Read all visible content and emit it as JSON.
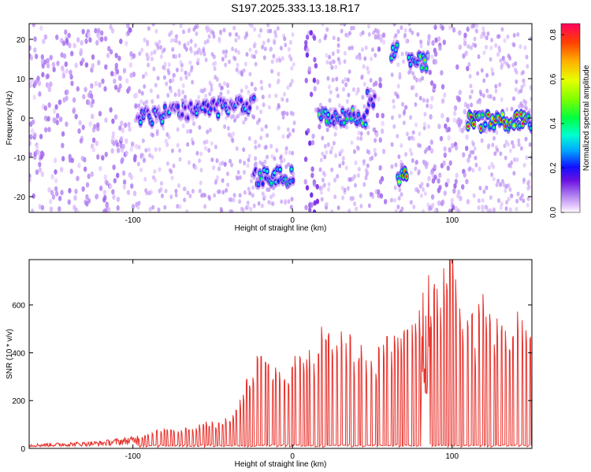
{
  "title": "S197.2025.333.13.18.R17",
  "chart_data": [
    {
      "type": "heatmap",
      "xlabel": "Height of straight line (km)",
      "ylabel": "Frequency (Hz)",
      "xlim": [
        -165,
        150
      ],
      "ylim": [
        -24,
        24
      ],
      "xticks": [
        -100,
        0,
        100
      ],
      "yticks": [
        -20,
        -10,
        0,
        10,
        20
      ],
      "colorbar": {
        "label": "Normalized spectral amplitude",
        "range": [
          0,
          0.85
        ],
        "ticks": [
          "0.0",
          "0.2",
          "0.4",
          "0.6",
          "0.8"
        ],
        "tick_values": [
          0,
          0.2,
          0.4,
          0.6,
          0.8
        ]
      },
      "segments": [
        {
          "x0": -165,
          "x1": -98,
          "freq": 0,
          "amp": 0.05,
          "noise": true
        },
        {
          "x0": -97,
          "x1": -24,
          "freq": 0,
          "amp": 0.25,
          "slope": 0.05,
          "noise": false
        },
        {
          "x0": -24,
          "x1": 1,
          "freq": -15,
          "amp": 0.3,
          "noise": false
        },
        {
          "x0": 8,
          "x1": 17,
          "freq": 17,
          "amp": 0.08,
          "noise": true
        },
        {
          "x0": 17,
          "x1": 47,
          "freq": 0,
          "amp": 0.38,
          "noise": false
        },
        {
          "x0": 47,
          "x1": 52,
          "freq": 5,
          "amp": 0.22,
          "noise": false
        },
        {
          "x0": 52,
          "x1": 58,
          "freq": 0,
          "amp": 0.05,
          "noise": true
        },
        {
          "x0": 62,
          "x1": 66,
          "freq": 17,
          "amp": 0.3,
          "noise": false
        },
        {
          "x0": 66,
          "x1": 72,
          "freq": -15,
          "amp": 0.55,
          "noise": false
        },
        {
          "x0": 73,
          "x1": 85,
          "freq": 14,
          "amp": 0.35,
          "noise": false
        },
        {
          "x0": 85,
          "x1": 110,
          "freq": 0,
          "amp": 0.05,
          "noise": true
        },
        {
          "x0": 110,
          "x1": 150,
          "freq": -1,
          "amp": 0.6,
          "noise": false
        }
      ]
    },
    {
      "type": "line",
      "xlabel": "Height of straight line (km)",
      "ylabel": "SNR (10 * v/v)",
      "xlim": [
        -165,
        150
      ],
      "ylim": [
        0,
        790
      ],
      "xticks": [
        -100,
        0,
        100
      ],
      "yticks": [
        0,
        200,
        400,
        600
      ],
      "series": [
        {
          "name": "SNR",
          "color": "#e8302a",
          "x": [
            -165,
            -140,
            -120,
            -100,
            -90,
            -80,
            -70,
            -60,
            -50,
            -40,
            -30,
            -20,
            -10,
            0,
            10,
            20,
            30,
            40,
            50,
            60,
            70,
            80,
            90,
            100,
            110,
            120,
            130,
            140,
            150
          ],
          "y": [
            15,
            20,
            25,
            40,
            60,
            90,
            80,
            85,
            100,
            120,
            250,
            350,
            310,
            320,
            380,
            450,
            520,
            380,
            320,
            420,
            480,
            520,
            600,
            770,
            450,
            560,
            460,
            500,
            490
          ]
        }
      ],
      "spikes": [
        {
          "x0": -97,
          "x1": -22,
          "min_gap": 1.6,
          "max_gap": 2.8
        },
        {
          "x0": -22,
          "x1": 80,
          "min_gap": 1.6,
          "max_gap": 3.2
        },
        {
          "x0": 86,
          "x1": 150,
          "min_gap": 1.6,
          "max_gap": 3.2
        }
      ]
    }
  ]
}
